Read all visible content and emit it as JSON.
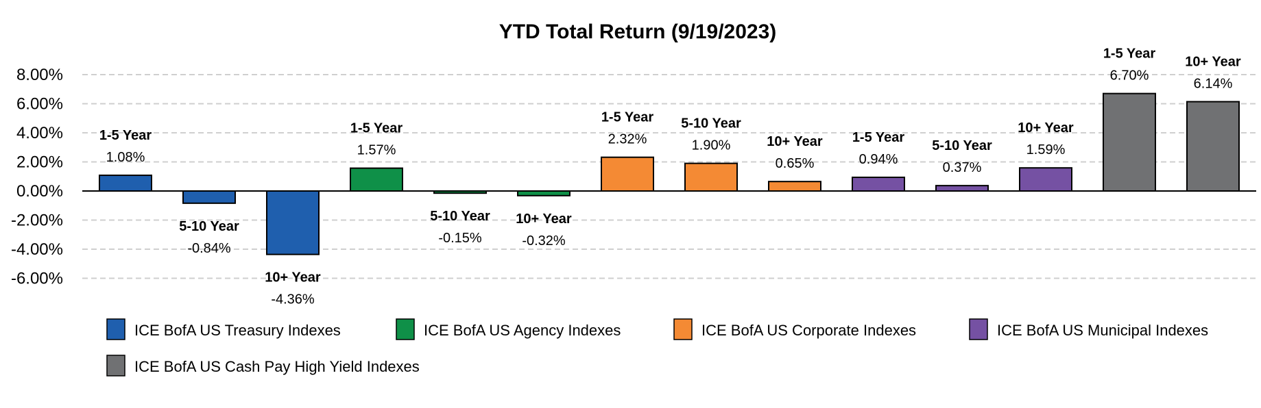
{
  "chart_data": {
    "type": "bar",
    "title": "YTD Total Return (9/19/2023)",
    "xlabel": "",
    "ylabel": "",
    "ylim": [
      -6,
      8
    ],
    "yticks": [
      "8.00%",
      "6.00%",
      "4.00%",
      "2.00%",
      "0.00%",
      "-2.00%",
      "-4.00%",
      "-6.00%"
    ],
    "ytick_values": [
      8,
      6,
      4,
      2,
      0,
      -2,
      -4,
      -6
    ],
    "grid": true,
    "legend_position": "bottom",
    "series": [
      {
        "name": "ICE BofA US Treasury Indexes",
        "color": "#1f5fae",
        "bars": [
          {
            "label": "1-5 Year",
            "value": 1.08,
            "text": "1.08%"
          },
          {
            "label": "5-10 Year",
            "value": -0.84,
            "text": "-0.84%"
          },
          {
            "label": "10+ Year",
            "value": -4.36,
            "text": "-4.36%"
          }
        ]
      },
      {
        "name": "ICE BofA US Agency Indexes",
        "color": "#0f9048",
        "bars": [
          {
            "label": "1-5 Year",
            "value": 1.57,
            "text": "1.57%"
          },
          {
            "label": "5-10 Year",
            "value": -0.15,
            "text": "-0.15%"
          },
          {
            "label": "10+ Year",
            "value": -0.32,
            "text": "-0.32%"
          }
        ]
      },
      {
        "name": "ICE BofA US Corporate Indexes",
        "color": "#f48a34",
        "bars": [
          {
            "label": "1-5 Year",
            "value": 2.32,
            "text": "2.32%"
          },
          {
            "label": "5-10 Year",
            "value": 1.9,
            "text": "1.90%"
          },
          {
            "label": "10+ Year",
            "value": 0.65,
            "text": "0.65%"
          }
        ]
      },
      {
        "name": "ICE BofA US Municipal Indexes",
        "color": "#7551a3",
        "bars": [
          {
            "label": "1-5 Year",
            "value": 0.94,
            "text": "0.94%"
          },
          {
            "label": "5-10 Year",
            "value": 0.37,
            "text": "0.37%"
          },
          {
            "label": "10+ Year",
            "value": 1.59,
            "text": "1.59%"
          }
        ]
      },
      {
        "name": "ICE BofA US Cash Pay High Yield Indexes",
        "color": "#707173",
        "bars": [
          {
            "label": "1-5 Year",
            "value": 6.7,
            "text": "6.70%"
          },
          {
            "label": "10+ Year",
            "value": 6.14,
            "text": "6.14%"
          }
        ]
      }
    ]
  }
}
